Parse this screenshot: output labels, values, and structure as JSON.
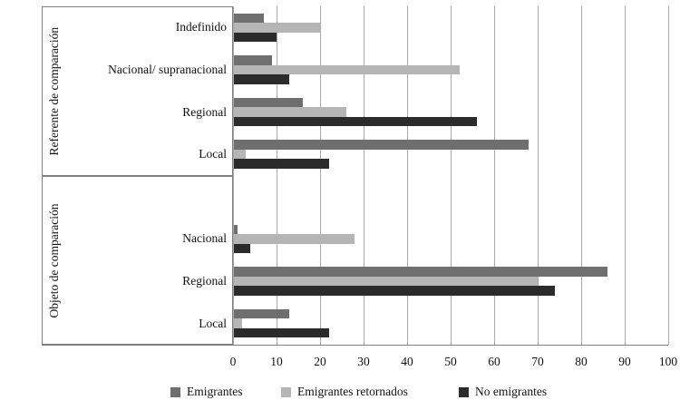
{
  "figure": {
    "background": "#ffffff",
    "text_color": "#111111"
  },
  "chart_data": {
    "type": "bar",
    "orientation": "horizontal",
    "title": "",
    "xlabel": "",
    "ylabel": "",
    "xlim": [
      0,
      100
    ],
    "x_ticks": [
      0,
      10,
      20,
      30,
      40,
      50,
      60,
      70,
      80,
      90,
      100
    ],
    "grid": true,
    "legend_position": "bottom",
    "series_meta": [
      {
        "name": "Emigrantes",
        "color": "#6f6f6f"
      },
      {
        "name": "Emigrantes retornados",
        "color": "#b5b5b5"
      },
      {
        "name": "No emigrantes",
        "color": "#2b2b2b"
      }
    ],
    "groups": [
      {
        "label": "Referente de comparación",
        "categories": [
          "Indefinido",
          "Nacional/ supranacional",
          "Regional",
          "Local"
        ],
        "series": [
          {
            "name": "Emigrantes",
            "values": [
              7,
              9,
              16,
              68
            ]
          },
          {
            "name": "Emigrantes retornados",
            "values": [
              20,
              52,
              26,
              3
            ]
          },
          {
            "name": "No emigrantes",
            "values": [
              10,
              13,
              56,
              22
            ]
          }
        ]
      },
      {
        "label": "Objeto de comparación",
        "categories": [
          "Nacional",
          "Regional",
          "Local"
        ],
        "series": [
          {
            "name": "Emigrantes",
            "values": [
              1,
              86,
              13
            ]
          },
          {
            "name": "Emigrantes retornados",
            "values": [
              28,
              70,
              2
            ]
          },
          {
            "name": "No emigrantes",
            "values": [
              4,
              74,
              22
            ]
          }
        ]
      }
    ]
  },
  "colors": {
    "gridline": "#a9a9a9",
    "box_border": "#7f7f7f",
    "axis_line": "#7f7f7f"
  }
}
